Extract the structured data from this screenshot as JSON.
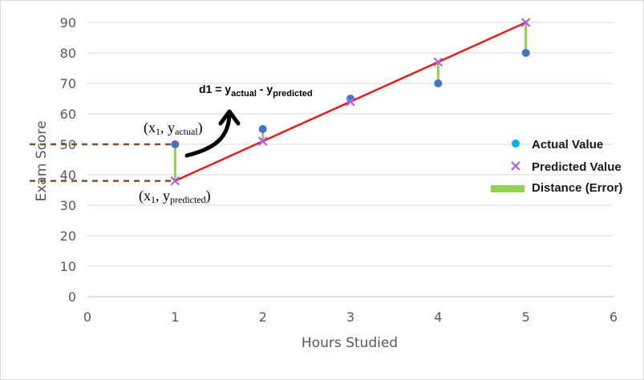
{
  "chart_data": {
    "type": "scatter",
    "title": "",
    "xlabel": "Hours Studied",
    "ylabel": "Exam Score",
    "xlim": [
      0,
      6
    ],
    "ylim": [
      0,
      90
    ],
    "x_ticks": [
      "0",
      "1",
      "2",
      "3",
      "4",
      "5",
      "6"
    ],
    "y_ticks": [
      "0",
      "10",
      "20",
      "30",
      "40",
      "50",
      "60",
      "70",
      "80",
      "90"
    ],
    "grid": "horizontal",
    "legend_position": "right",
    "series": [
      {
        "name": "Actual Value",
        "marker": "circle",
        "color": "#4472c4",
        "legend_color": "#00b0f0",
        "x": [
          1,
          2,
          3,
          4,
          5
        ],
        "y": [
          50,
          55,
          65,
          70,
          80
        ]
      },
      {
        "name": "Predicted Value",
        "marker": "x",
        "color": "#b05ce6",
        "x": [
          1,
          2,
          3,
          4,
          5
        ],
        "y": [
          38,
          51,
          64,
          77,
          90
        ]
      },
      {
        "name": "Distance (Error)",
        "marker": "bar",
        "color": "#92d050"
      }
    ],
    "regression_line": {
      "x": [
        1,
        5
      ],
      "y": [
        38,
        90
      ],
      "color": "#e02020"
    },
    "annotations": {
      "formula": {
        "lhs": "d1 = y",
        "actual_sub": "actual",
        "minus": " - y",
        "predicted_sub": "predicted"
      },
      "actual_point": {
        "open": "(x",
        "sub1": "1",
        "mid": ", y",
        "sub2": "actual",
        "close": ")"
      },
      "predicted_point": {
        "open": "(x",
        "sub1": "1",
        "mid": ", y",
        "sub2": "predicted",
        "close": ")"
      }
    }
  }
}
